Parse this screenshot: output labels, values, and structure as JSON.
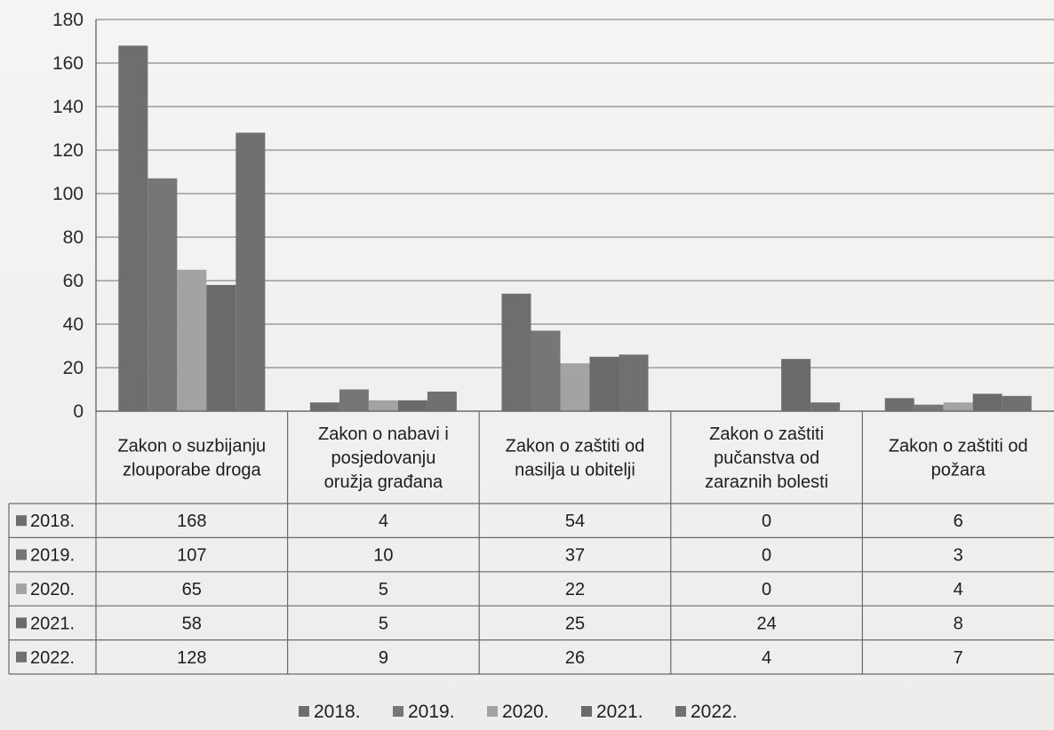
{
  "chart_data": {
    "type": "bar",
    "categories": [
      [
        "Zakon o suzbijanju",
        "zlouporabe droga"
      ],
      [
        "Zakon o nabavi i",
        "posjedovanju",
        "oružja građana"
      ],
      [
        "Zakon o zaštiti od",
        "nasilja u obitelji"
      ],
      [
        "Zakon o zaštiti",
        "pučanstva od",
        "zaraznih bolesti"
      ],
      [
        "Zakon o zaštiti od",
        "požara"
      ]
    ],
    "series": [
      {
        "name": "2018.",
        "values": [
          168,
          4,
          54,
          0,
          6
        ],
        "color": "#6e6e6e"
      },
      {
        "name": "2019.",
        "values": [
          107,
          10,
          37,
          0,
          3
        ],
        "color": "#767676"
      },
      {
        "name": "2020.",
        "values": [
          65,
          5,
          22,
          0,
          4
        ],
        "color": "#a3a3a3"
      },
      {
        "name": "2021.",
        "values": [
          58,
          5,
          25,
          24,
          8
        ],
        "color": "#6a6a6a"
      },
      {
        "name": "2022.",
        "values": [
          128,
          9,
          26,
          4,
          7
        ],
        "color": "#707070"
      }
    ],
    "ylim": [
      0,
      180
    ],
    "yticks": [
      0,
      20,
      40,
      60,
      80,
      100,
      120,
      140,
      160,
      180
    ],
    "grid": true,
    "data_table": true,
    "legend_position": "bottom",
    "title": "",
    "xlabel": "",
    "ylabel": ""
  }
}
